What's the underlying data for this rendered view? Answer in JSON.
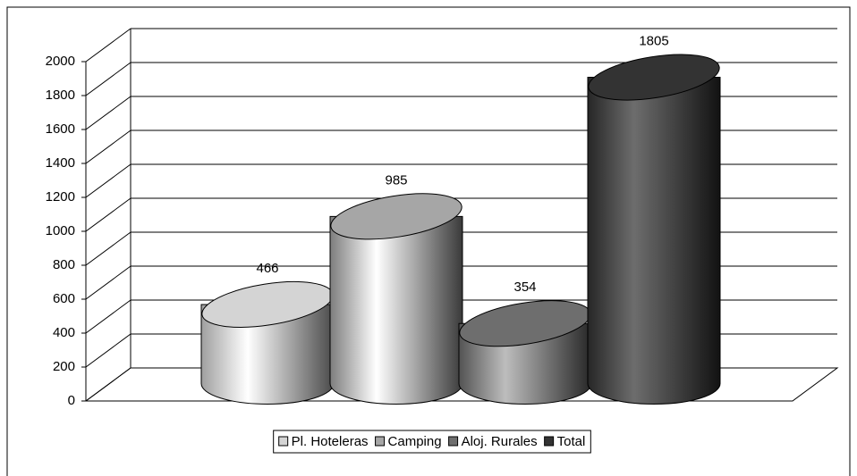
{
  "chart_data": {
    "type": "bar3d",
    "categories": [
      null
    ],
    "series": [
      {
        "name": "Pl. Hoteleras",
        "color": "#d4d4d4",
        "values": [
          466
        ]
      },
      {
        "name": "Camping",
        "color": "#a6a6a6",
        "values": [
          985
        ]
      },
      {
        "name": "Aloj. Rurales",
        "color": "#6e6e6e",
        "values": [
          354
        ]
      },
      {
        "name": "Total",
        "color": "#333333",
        "values": [
          1805
        ]
      }
    ],
    "ylim": [
      0,
      2000
    ],
    "yticks": [
      0,
      200,
      400,
      600,
      800,
      1000,
      1200,
      1400,
      1600,
      1800,
      2000
    ],
    "grid": true
  }
}
